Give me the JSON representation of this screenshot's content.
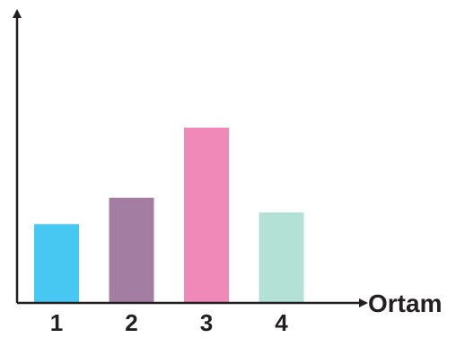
{
  "chart_data": {
    "type": "bar",
    "categories": [
      "1",
      "2",
      "3",
      "4"
    ],
    "values": [
      2.7,
      3.6,
      6.0,
      3.1
    ],
    "colors": [
      "#46c8f2",
      "#a47ea2",
      "#f088b8",
      "#b3e1d6"
    ],
    "xlabel": "Ortam",
    "ylabel": "",
    "title": "",
    "y_tick_labels": false,
    "grid": false,
    "ylim": [
      0,
      10
    ],
    "axis_color": "#231f20"
  }
}
